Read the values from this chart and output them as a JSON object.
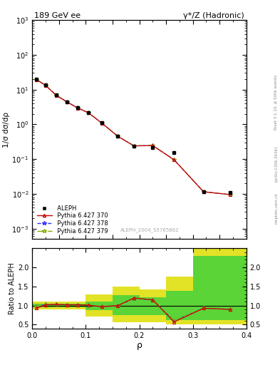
{
  "title_left": "189 GeV ee",
  "title_right": "γ*/Z (Hadronic)",
  "ylabel_main": "1/σ dσ/dρ",
  "ylabel_ratio": "Ratio to ALEPH",
  "xlabel": "ρ",
  "watermark": "ALEPH_2004_S5765862",
  "rivet_label": "Rivet 3.1.10, ≥ 500k events",
  "arxiv_label": "[arXiv:1306.3436]",
  "mcplots_label": "mcplots.cern.ch",
  "rho_centers": [
    0.008,
    0.025,
    0.045,
    0.065,
    0.085,
    0.105,
    0.13,
    0.16,
    0.19,
    0.225,
    0.265,
    0.32,
    0.37
  ],
  "aleph_vals": [
    20.0,
    13.5,
    7.0,
    4.5,
    3.0,
    2.2,
    1.1,
    0.46,
    0.24,
    0.21,
    0.155,
    0.0115,
    0.011
  ],
  "pythia370_vals": [
    19.2,
    13.2,
    6.8,
    4.4,
    2.95,
    2.15,
    1.08,
    0.45,
    0.24,
    0.245,
    0.095,
    0.0115,
    0.0095
  ],
  "pythia378_vals": [
    19.5,
    13.3,
    6.85,
    4.42,
    2.97,
    2.16,
    1.09,
    0.455,
    0.241,
    0.247,
    0.096,
    0.0115,
    0.0095
  ],
  "pythia379_vals": [
    19.5,
    13.3,
    6.85,
    4.42,
    2.97,
    2.16,
    1.09,
    0.455,
    0.241,
    0.247,
    0.096,
    0.0115,
    0.0095
  ],
  "ratio370": [
    0.93,
    1.02,
    1.03,
    1.02,
    1.02,
    1.01,
    0.97,
    1.0,
    1.2,
    1.15,
    0.57,
    0.93,
    0.9
  ],
  "ratio378": [
    0.97,
    1.03,
    1.03,
    1.02,
    1.02,
    1.01,
    0.97,
    1.0,
    1.18,
    1.15,
    0.6,
    0.93,
    0.9
  ],
  "ratio379": [
    0.97,
    1.03,
    1.03,
    1.02,
    1.02,
    1.01,
    0.97,
    1.0,
    1.18,
    1.15,
    0.6,
    0.93,
    0.9
  ],
  "band_edges": [
    0.0,
    0.025,
    0.05,
    0.1,
    0.15,
    0.2,
    0.25,
    0.3,
    0.4
  ],
  "green_lo": [
    0.95,
    0.95,
    0.95,
    0.88,
    0.75,
    0.75,
    0.62,
    0.62,
    0.62
  ],
  "green_hi": [
    1.05,
    1.05,
    1.05,
    1.1,
    1.28,
    1.22,
    1.38,
    2.3,
    2.3
  ],
  "yellow_lo": [
    0.9,
    0.9,
    0.9,
    0.72,
    0.57,
    0.57,
    0.5,
    0.5,
    0.5
  ],
  "yellow_hi": [
    1.1,
    1.1,
    1.1,
    1.3,
    1.5,
    1.42,
    1.75,
    2.5,
    2.5
  ],
  "color_aleph": "#000000",
  "color_370": "#cc0000",
  "color_378": "#3333ff",
  "color_379": "#88aa00",
  "color_green": "#00cc44",
  "color_yellow": "#dddd00",
  "xlim": [
    0.0,
    0.4
  ],
  "ylim_main": [
    0.0005,
    1000
  ],
  "ylim_ratio": [
    0.4,
    2.5
  ],
  "ratio_yticks": [
    0.5,
    1.0,
    1.5,
    2.0
  ]
}
